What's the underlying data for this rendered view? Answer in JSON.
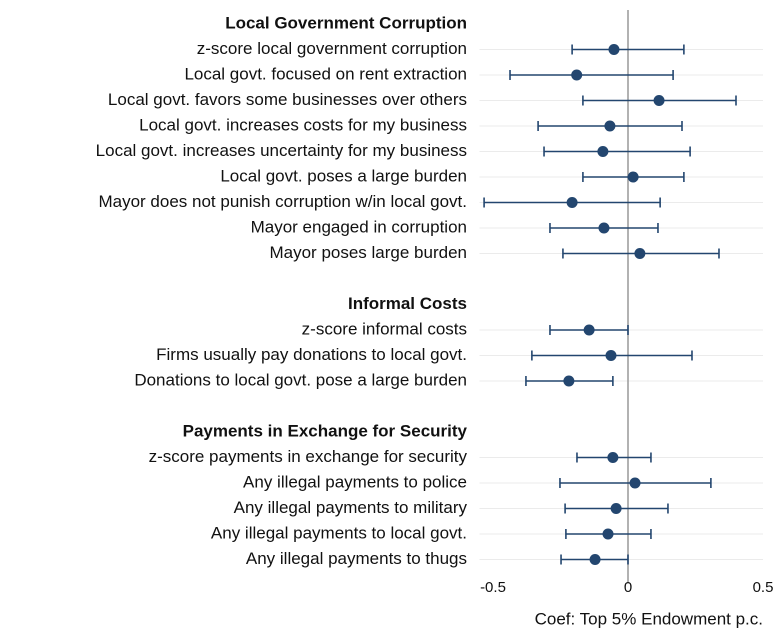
{
  "chart_data": {
    "type": "coefplot",
    "xlabel": "Coef: Top 5% Endowment p.c.",
    "xlim": [
      -0.55,
      0.5
    ],
    "xticks": [
      -0.5,
      0.0,
      0.5
    ],
    "refline": 0,
    "grid": true,
    "color": "#23466f",
    "groups": [
      {
        "name": "Local Government Corruption",
        "categories": [
          "z-score local government corruption",
          "Local govt. focused on rent extraction",
          "Local govt. favors some businesses over others",
          "Local govt. increases costs for my business",
          "Local govt. increases uncertainty for my business",
          "Local govt. poses a large burden",
          "Mayor does not punish corruption w/in local govt.",
          "Mayor engaged in corruption",
          "Mayor poses large burden"
        ],
        "values": [
          -0.052,
          -0.19,
          0.115,
          -0.067,
          -0.093,
          0.019,
          -0.207,
          -0.089,
          0.044
        ],
        "lower": [
          -0.207,
          -0.437,
          -0.167,
          -0.333,
          -0.311,
          -0.167,
          -0.533,
          -0.289,
          -0.241
        ],
        "upper": [
          0.207,
          0.167,
          0.4,
          0.2,
          0.23,
          0.207,
          0.119,
          0.111,
          0.337
        ]
      },
      {
        "name": "Informal Costs",
        "categories": [
          "z-score informal costs",
          "Firms usually pay donations to local govt.",
          "Donations to local govt. pose a large burden"
        ],
        "values": [
          -0.144,
          -0.063,
          -0.219
        ],
        "lower": [
          -0.289,
          -0.356,
          -0.378
        ],
        "upper": [
          0.0,
          0.237,
          -0.056
        ]
      },
      {
        "name": "Payments in Exchange for Security",
        "categories": [
          "z-score payments in exchange for security",
          "Any illegal payments to police",
          "Any illegal payments to military",
          "Any illegal payments to local govt.",
          "Any illegal payments to thugs"
        ],
        "values": [
          -0.056,
          0.026,
          -0.044,
          -0.074,
          -0.122
        ],
        "lower": [
          -0.189,
          -0.252,
          -0.233,
          -0.23,
          -0.248
        ],
        "upper": [
          0.085,
          0.307,
          0.148,
          0.085,
          0.0
        ]
      }
    ]
  }
}
